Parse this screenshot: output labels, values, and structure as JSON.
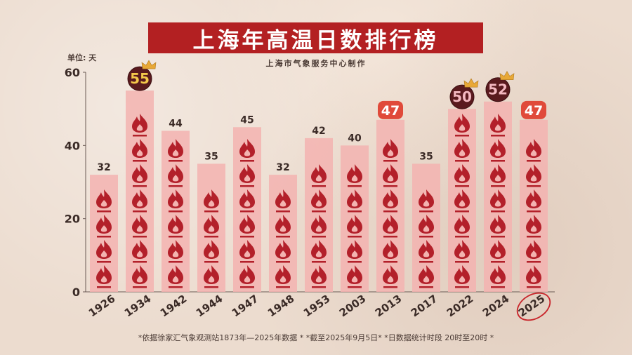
{
  "title": "上海年高温日数排行榜",
  "subtitle": "上海市气象服务中心制作",
  "footnote": "*依据徐家汇气象观测站1873年—2025年数据 * *截至2025年9月5日* *日数据统计时段 20时至20时 *",
  "chart_data": {
    "type": "bar",
    "unit_label": "单位: 天",
    "categories": [
      "1926",
      "1934",
      "1942",
      "1944",
      "1947",
      "1948",
      "1953",
      "2003",
      "2013",
      "2017",
      "2022",
      "2024",
      "2025"
    ],
    "values": [
      32,
      55,
      44,
      35,
      45,
      32,
      42,
      40,
      47,
      35,
      50,
      52,
      47
    ],
    "value_labels": [
      "32",
      "55",
      "44",
      "35",
      "45",
      "32",
      "42",
      "40",
      "47",
      "35",
      "50",
      "52",
      "47"
    ],
    "ylim": [
      0,
      60
    ],
    "y_ticks": [
      "0",
      "20",
      "40",
      "60"
    ],
    "highlight": {
      "crown_dark": [
        "1934",
        "2022"
      ],
      "crown_pink": [
        "2024"
      ],
      "red_badge": [
        "2013",
        "2025"
      ],
      "circled_category": "2025"
    },
    "colors": {
      "bar": "#f3b3b0",
      "flame": "#b3202a",
      "badge_red": "#e04a3a",
      "badge_dark": "#5a1a1e",
      "gold_text": "#f3c84a",
      "pink_text": "#f3b8c0",
      "crown": "#e8a836"
    }
  }
}
